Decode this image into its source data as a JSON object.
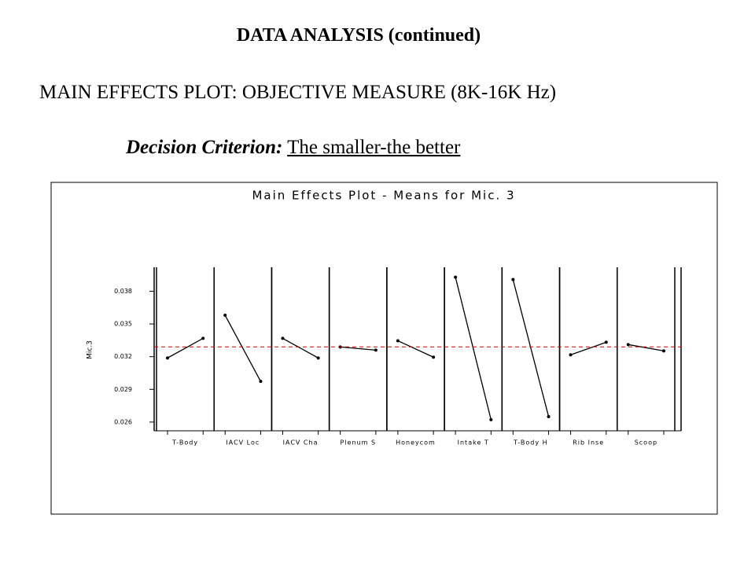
{
  "heading": "DATA ANALYSIS (continued)",
  "subheading": "MAIN EFFECTS PLOT: OBJECTIVE MEASURE (8K-16K Hz)",
  "criterion_label": "Decision Criterion:",
  "criterion_text": "The smaller-the better",
  "chart_data": {
    "type": "line",
    "title": "Main Effects Plot - Means for Mic. 3",
    "ylabel": "Mic.3",
    "ylim": [
      0.0252,
      0.0402
    ],
    "yticks": [
      0.026,
      0.029,
      0.032,
      0.035,
      0.038
    ],
    "reference": 0.0329,
    "color": "#000000",
    "reference_color": "#cc0000",
    "panels": [
      {
        "label": "T-Body",
        "values": [
          0.03188,
          0.03368
        ]
      },
      {
        "label": "IACV Loc",
        "values": [
          0.0358,
          0.02973
        ]
      },
      {
        "label": "IACV Cha",
        "values": [
          0.03368,
          0.03188
        ]
      },
      {
        "label": "Plenum S",
        "values": [
          0.03289,
          0.0326
        ]
      },
      {
        "label": "Honeycom",
        "values": [
          0.03346,
          0.03195
        ]
      },
      {
        "label": "Intake T",
        "values": [
          0.03929,
          0.02622
        ]
      },
      {
        "label": "T-Body H",
        "values": [
          0.03907,
          0.0265
        ]
      },
      {
        "label": "Rib Inse",
        "values": [
          0.03217,
          0.03332
        ]
      },
      {
        "label": "Scoop",
        "values": [
          0.03311,
          0.03253
        ]
      }
    ]
  }
}
